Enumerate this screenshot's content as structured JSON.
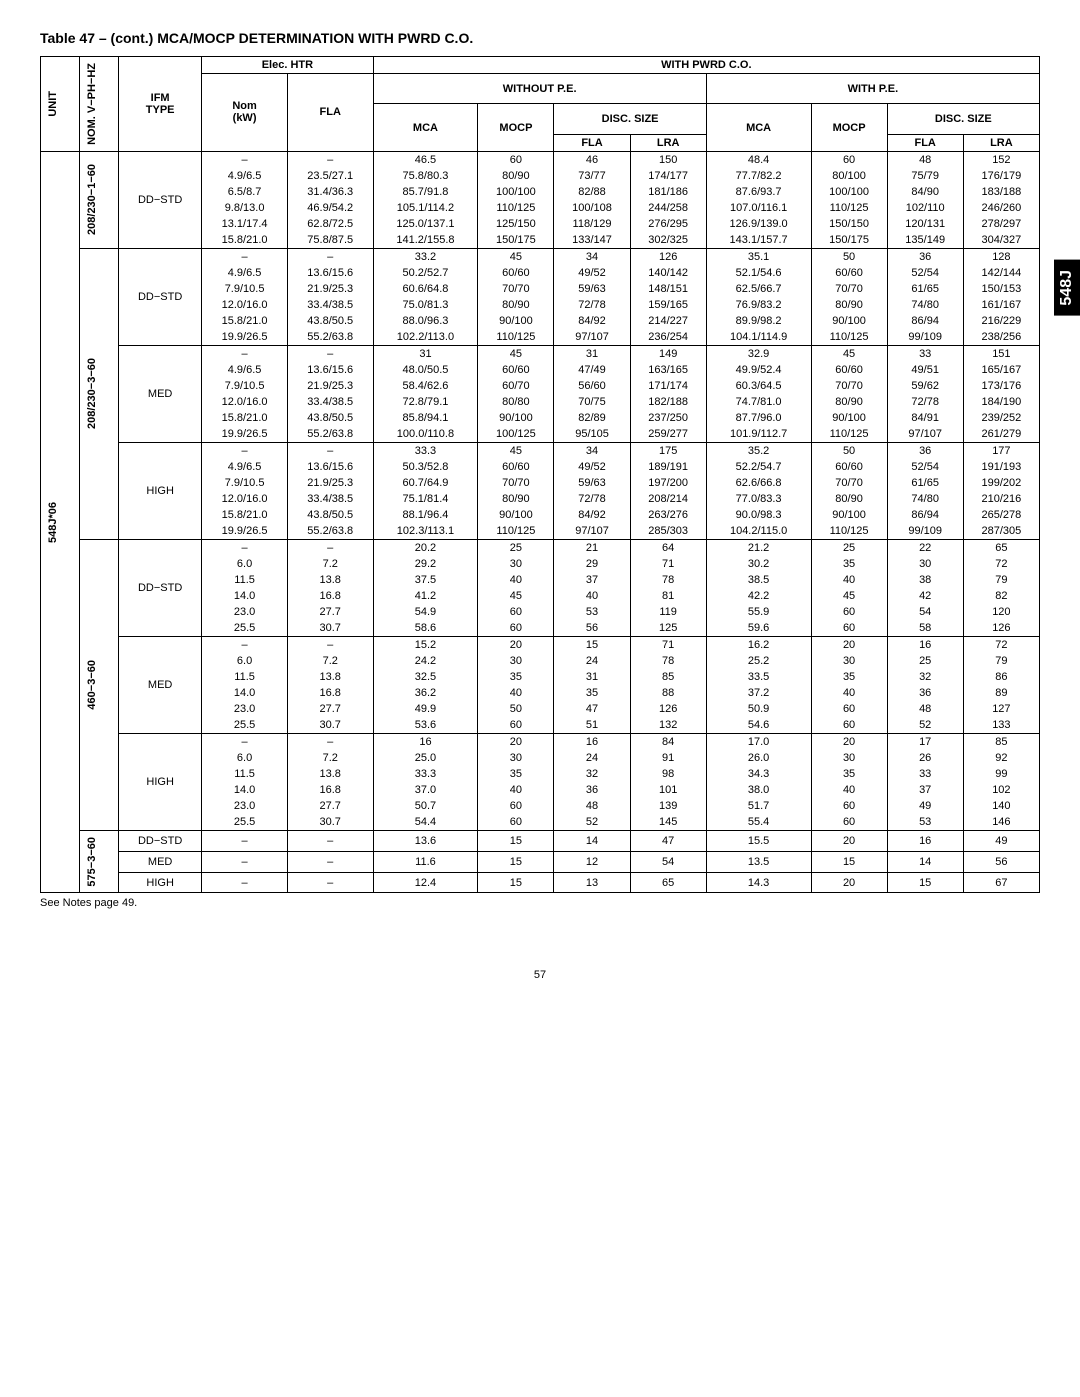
{
  "title": "Table 47 – (cont.) MCA/MOCP DETERMINATION WITH PWRD C.O.",
  "side_tab": "548J",
  "page_number": "57",
  "footnote": "See Notes page 49.",
  "headers": {
    "unit": "UNIT",
    "nom": "NOM. V−PH−HZ",
    "ifm": "IFM\nTYPE",
    "elec_htr": "Elec. HTR",
    "nom_kw": "Nom\n(kW)",
    "fla": "FLA",
    "with_pwrd": "WITH PWRD C.O.",
    "without_pe": "WITHOUT P.E.",
    "with_pe": "WITH P.E.",
    "mca": "MCA",
    "mocp": "MOCP",
    "disc_size": "DISC. SIZE",
    "fla2": "FLA",
    "lra": "LRA"
  },
  "unit_label": "548J*06",
  "groups": [
    {
      "nom": "208/230−1−60",
      "blocks": [
        {
          "ifm": "DD−STD",
          "rows": [
            [
              "–",
              "–",
              "46.5",
              "60",
              "46",
              "150",
              "48.4",
              "60",
              "48",
              "152"
            ],
            [
              "4.9/6.5",
              "23.5/27.1",
              "75.8/80.3",
              "80/90",
              "73/77",
              "174/177",
              "77.7/82.2",
              "80/100",
              "75/79",
              "176/179"
            ],
            [
              "6.5/8.7",
              "31.4/36.3",
              "85.7/91.8",
              "100/100",
              "82/88",
              "181/186",
              "87.6/93.7",
              "100/100",
              "84/90",
              "183/188"
            ],
            [
              "9.8/13.0",
              "46.9/54.2",
              "105.1/114.2",
              "110/125",
              "100/108",
              "244/258",
              "107.0/116.1",
              "110/125",
              "102/110",
              "246/260"
            ],
            [
              "13.1/17.4",
              "62.8/72.5",
              "125.0/137.1",
              "125/150",
              "118/129",
              "276/295",
              "126.9/139.0",
              "150/150",
              "120/131",
              "278/297"
            ],
            [
              "15.8/21.0",
              "75.8/87.5",
              "141.2/155.8",
              "150/175",
              "133/147",
              "302/325",
              "143.1/157.7",
              "150/175",
              "135/149",
              "304/327"
            ]
          ]
        }
      ]
    },
    {
      "nom": "208/230−3−60",
      "blocks": [
        {
          "ifm": "DD−STD",
          "rows": [
            [
              "–",
              "–",
              "33.2",
              "45",
              "34",
              "126",
              "35.1",
              "50",
              "36",
              "128"
            ],
            [
              "4.9/6.5",
              "13.6/15.6",
              "50.2/52.7",
              "60/60",
              "49/52",
              "140/142",
              "52.1/54.6",
              "60/60",
              "52/54",
              "142/144"
            ],
            [
              "7.9/10.5",
              "21.9/25.3",
              "60.6/64.8",
              "70/70",
              "59/63",
              "148/151",
              "62.5/66.7",
              "70/70",
              "61/65",
              "150/153"
            ],
            [
              "12.0/16.0",
              "33.4/38.5",
              "75.0/81.3",
              "80/90",
              "72/78",
              "159/165",
              "76.9/83.2",
              "80/90",
              "74/80",
              "161/167"
            ],
            [
              "15.8/21.0",
              "43.8/50.5",
              "88.0/96.3",
              "90/100",
              "84/92",
              "214/227",
              "89.9/98.2",
              "90/100",
              "86/94",
              "216/229"
            ],
            [
              "19.9/26.5",
              "55.2/63.8",
              "102.2/113.0",
              "110/125",
              "97/107",
              "236/254",
              "104.1/114.9",
              "110/125",
              "99/109",
              "238/256"
            ]
          ]
        },
        {
          "ifm": "MED",
          "rows": [
            [
              "–",
              "–",
              "31",
              "45",
              "31",
              "149",
              "32.9",
              "45",
              "33",
              "151"
            ],
            [
              "4.9/6.5",
              "13.6/15.6",
              "48.0/50.5",
              "60/60",
              "47/49",
              "163/165",
              "49.9/52.4",
              "60/60",
              "49/51",
              "165/167"
            ],
            [
              "7.9/10.5",
              "21.9/25.3",
              "58.4/62.6",
              "60/70",
              "56/60",
              "171/174",
              "60.3/64.5",
              "70/70",
              "59/62",
              "173/176"
            ],
            [
              "12.0/16.0",
              "33.4/38.5",
              "72.8/79.1",
              "80/80",
              "70/75",
              "182/188",
              "74.7/81.0",
              "80/90",
              "72/78",
              "184/190"
            ],
            [
              "15.8/21.0",
              "43.8/50.5",
              "85.8/94.1",
              "90/100",
              "82/89",
              "237/250",
              "87.7/96.0",
              "90/100",
              "84/91",
              "239/252"
            ],
            [
              "19.9/26.5",
              "55.2/63.8",
              "100.0/110.8",
              "100/125",
              "95/105",
              "259/277",
              "101.9/112.7",
              "110/125",
              "97/107",
              "261/279"
            ]
          ]
        },
        {
          "ifm": "HIGH",
          "rows": [
            [
              "–",
              "–",
              "33.3",
              "45",
              "34",
              "175",
              "35.2",
              "50",
              "36",
              "177"
            ],
            [
              "4.9/6.5",
              "13.6/15.6",
              "50.3/52.8",
              "60/60",
              "49/52",
              "189/191",
              "52.2/54.7",
              "60/60",
              "52/54",
              "191/193"
            ],
            [
              "7.9/10.5",
              "21.9/25.3",
              "60.7/64.9",
              "70/70",
              "59/63",
              "197/200",
              "62.6/66.8",
              "70/70",
              "61/65",
              "199/202"
            ],
            [
              "12.0/16.0",
              "33.4/38.5",
              "75.1/81.4",
              "80/90",
              "72/78",
              "208/214",
              "77.0/83.3",
              "80/90",
              "74/80",
              "210/216"
            ],
            [
              "15.8/21.0",
              "43.8/50.5",
              "88.1/96.4",
              "90/100",
              "84/92",
              "263/276",
              "90.0/98.3",
              "90/100",
              "86/94",
              "265/278"
            ],
            [
              "19.9/26.5",
              "55.2/63.8",
              "102.3/113.1",
              "110/125",
              "97/107",
              "285/303",
              "104.2/115.0",
              "110/125",
              "99/109",
              "287/305"
            ]
          ]
        }
      ]
    },
    {
      "nom": "460−3−60",
      "blocks": [
        {
          "ifm": "DD−STD",
          "rows": [
            [
              "–",
              "–",
              "20.2",
              "25",
              "21",
              "64",
              "21.2",
              "25",
              "22",
              "65"
            ],
            [
              "6.0",
              "7.2",
              "29.2",
              "30",
              "29",
              "71",
              "30.2",
              "35",
              "30",
              "72"
            ],
            [
              "11.5",
              "13.8",
              "37.5",
              "40",
              "37",
              "78",
              "38.5",
              "40",
              "38",
              "79"
            ],
            [
              "14.0",
              "16.8",
              "41.2",
              "45",
              "40",
              "81",
              "42.2",
              "45",
              "42",
              "82"
            ],
            [
              "23.0",
              "27.7",
              "54.9",
              "60",
              "53",
              "119",
              "55.9",
              "60",
              "54",
              "120"
            ],
            [
              "25.5",
              "30.7",
              "58.6",
              "60",
              "56",
              "125",
              "59.6",
              "60",
              "58",
              "126"
            ]
          ]
        },
        {
          "ifm": "MED",
          "rows": [
            [
              "–",
              "–",
              "15.2",
              "20",
              "15",
              "71",
              "16.2",
              "20",
              "16",
              "72"
            ],
            [
              "6.0",
              "7.2",
              "24.2",
              "30",
              "24",
              "78",
              "25.2",
              "30",
              "25",
              "79"
            ],
            [
              "11.5",
              "13.8",
              "32.5",
              "35",
              "31",
              "85",
              "33.5",
              "35",
              "32",
              "86"
            ],
            [
              "14.0",
              "16.8",
              "36.2",
              "40",
              "35",
              "88",
              "37.2",
              "40",
              "36",
              "89"
            ],
            [
              "23.0",
              "27.7",
              "49.9",
              "50",
              "47",
              "126",
              "50.9",
              "60",
              "48",
              "127"
            ],
            [
              "25.5",
              "30.7",
              "53.6",
              "60",
              "51",
              "132",
              "54.6",
              "60",
              "52",
              "133"
            ]
          ]
        },
        {
          "ifm": "HIGH",
          "rows": [
            [
              "–",
              "–",
              "16",
              "20",
              "16",
              "84",
              "17.0",
              "20",
              "17",
              "85"
            ],
            [
              "6.0",
              "7.2",
              "25.0",
              "30",
              "24",
              "91",
              "26.0",
              "30",
              "26",
              "92"
            ],
            [
              "11.5",
              "13.8",
              "33.3",
              "35",
              "32",
              "98",
              "34.3",
              "35",
              "33",
              "99"
            ],
            [
              "14.0",
              "16.8",
              "37.0",
              "40",
              "36",
              "101",
              "38.0",
              "40",
              "37",
              "102"
            ],
            [
              "23.0",
              "27.7",
              "50.7",
              "60",
              "48",
              "139",
              "51.7",
              "60",
              "49",
              "140"
            ],
            [
              "25.5",
              "30.7",
              "54.4",
              "60",
              "52",
              "145",
              "55.4",
              "60",
              "53",
              "146"
            ]
          ]
        }
      ]
    },
    {
      "nom": "575−3−60",
      "blocks": [
        {
          "ifm": "DD−STD",
          "rows": [
            [
              "–",
              "–",
              "13.6",
              "15",
              "14",
              "47",
              "15.5",
              "20",
              "16",
              "49"
            ]
          ]
        },
        {
          "ifm": "MED",
          "rows": [
            [
              "–",
              "–",
              "11.6",
              "15",
              "12",
              "54",
              "13.5",
              "15",
              "14",
              "56"
            ]
          ]
        },
        {
          "ifm": "HIGH",
          "rows": [
            [
              "–",
              "–",
              "12.4",
              "15",
              "13",
              "65",
              "14.3",
              "20",
              "15",
              "67"
            ]
          ]
        }
      ]
    }
  ]
}
